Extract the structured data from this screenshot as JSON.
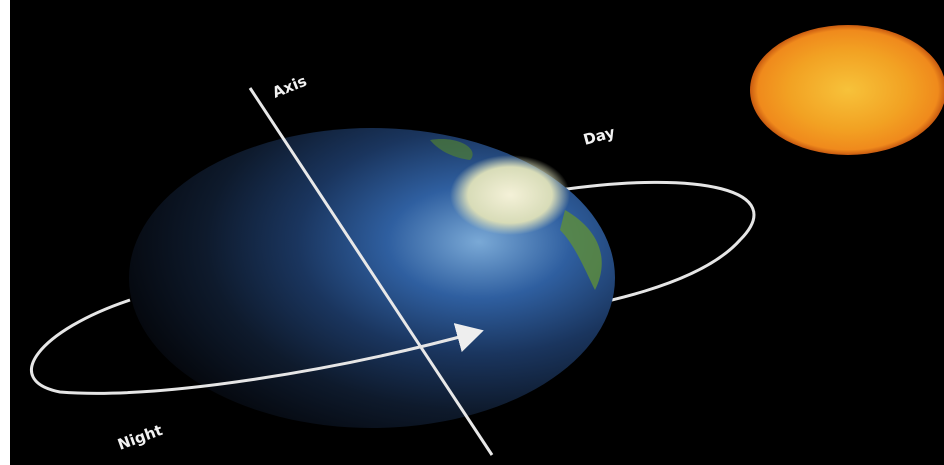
{
  "labels": {
    "axis": "Axis",
    "day": "Day",
    "night": "Night"
  }
}
